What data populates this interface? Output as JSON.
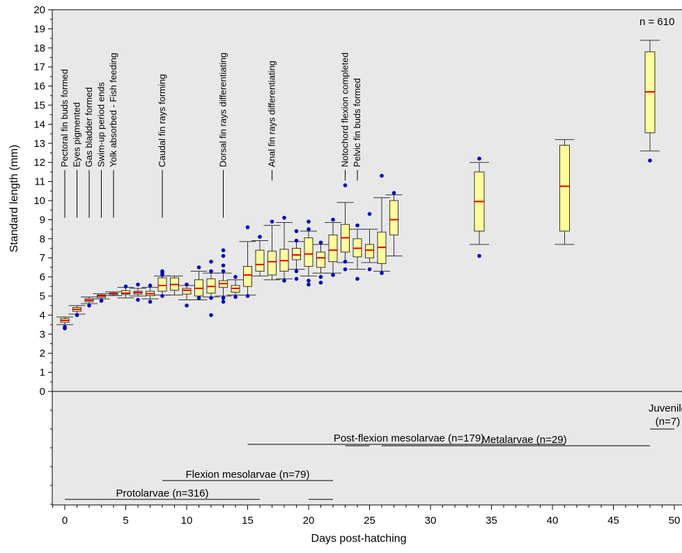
{
  "chart_data": {
    "type": "box",
    "xlabel": "Days post-hatching",
    "ylabel": "Standard length (mm)",
    "xlim": [
      -1,
      50.5
    ],
    "ylim": [
      0,
      20
    ],
    "xticks": [
      0,
      5,
      10,
      15,
      20,
      25,
      30,
      35,
      40,
      45,
      50
    ],
    "yticks": [
      0,
      1,
      2,
      3,
      4,
      5,
      6,
      7,
      8,
      9,
      10,
      11,
      12,
      13,
      14,
      15,
      16,
      17,
      18,
      19,
      20
    ],
    "n_label": "n = 610",
    "grid": false,
    "colors": {
      "background": "#e8e8e8",
      "box_fill": "#ffff99",
      "box_edge": "#333333",
      "median": "#e60000",
      "outlier": "#0000cc"
    },
    "boxes": [
      {
        "day": 0,
        "whisker_low": 3.5,
        "q1": 3.62,
        "median": 3.72,
        "q3": 3.82,
        "whisker_high": 3.9,
        "outliers": [
          3.3,
          3.38
        ]
      },
      {
        "day": 1,
        "whisker_low": 4.05,
        "q1": 4.2,
        "median": 4.3,
        "q3": 4.4,
        "whisker_high": 4.5,
        "outliers": [
          4.0
        ]
      },
      {
        "day": 2,
        "whisker_low": 4.6,
        "q1": 4.7,
        "median": 4.78,
        "q3": 4.86,
        "whisker_high": 4.95,
        "outliers": [
          4.5
        ]
      },
      {
        "day": 3,
        "whisker_low": 4.85,
        "q1": 4.92,
        "median": 5.0,
        "q3": 5.06,
        "whisker_high": 5.12,
        "outliers": [
          4.75
        ]
      },
      {
        "day": 4,
        "whisker_low": 5.02,
        "q1": 5.08,
        "median": 5.12,
        "q3": 5.16,
        "whisker_high": 5.22,
        "outliers": []
      },
      {
        "day": 5,
        "whisker_low": 4.9,
        "q1": 5.08,
        "median": 5.15,
        "q3": 5.28,
        "whisker_high": 5.45,
        "outliers": [
          5.5
        ]
      },
      {
        "day": 6,
        "whisker_low": 5.0,
        "q1": 5.1,
        "median": 5.18,
        "q3": 5.25,
        "whisker_high": 5.4,
        "outliers": [
          4.8,
          5.6
        ]
      },
      {
        "day": 7,
        "whisker_low": 4.85,
        "q1": 5.02,
        "median": 5.12,
        "q3": 5.25,
        "whisker_high": 5.45,
        "outliers": [
          4.7,
          5.55
        ]
      },
      {
        "day": 8,
        "whisker_low": 5.05,
        "q1": 5.25,
        "median": 5.55,
        "q3": 5.95,
        "whisker_high": 6.05,
        "outliers": [
          5.0,
          6.1,
          6.2,
          6.3
        ]
      },
      {
        "day": 9,
        "whisker_low": 5.05,
        "q1": 5.3,
        "median": 5.6,
        "q3": 5.95,
        "whisker_high": 6.05,
        "outliers": []
      },
      {
        "day": 10,
        "whisker_low": 4.8,
        "q1": 5.1,
        "median": 5.3,
        "q3": 5.4,
        "whisker_high": 5.55,
        "outliers": [
          4.5,
          5.6
        ]
      },
      {
        "day": 11,
        "whisker_low": 4.8,
        "q1": 5.0,
        "median": 5.4,
        "q3": 5.85,
        "whisker_high": 6.3,
        "outliers": [
          4.9,
          6.5
        ]
      },
      {
        "day": 12,
        "whisker_low": 4.95,
        "q1": 5.15,
        "median": 5.5,
        "q3": 5.9,
        "whisker_high": 6.2,
        "outliers": [
          4.0,
          4.9,
          6.3,
          6.8
        ]
      },
      {
        "day": 13,
        "whisker_low": 5.0,
        "q1": 5.45,
        "median": 5.65,
        "q3": 5.8,
        "whisker_high": 6.2,
        "outliers": [
          4.7,
          4.9,
          6.3,
          6.6,
          7.1,
          7.4
        ]
      },
      {
        "day": 14,
        "whisker_low": 5.05,
        "q1": 5.2,
        "median": 5.4,
        "q3": 5.55,
        "whisker_high": 5.85,
        "outliers": [
          4.95,
          6.0
        ]
      },
      {
        "day": 15,
        "whisker_low": 5.05,
        "q1": 5.5,
        "median": 6.1,
        "q3": 6.55,
        "whisker_high": 7.85,
        "outliers": [
          5.0,
          8.6
        ]
      },
      {
        "day": 16,
        "whisker_low": 6.05,
        "q1": 6.3,
        "median": 6.65,
        "q3": 7.4,
        "whisker_high": 7.9,
        "outliers": [
          8.1
        ]
      },
      {
        "day": 17,
        "whisker_low": 5.85,
        "q1": 6.1,
        "median": 6.8,
        "q3": 7.35,
        "whisker_high": 8.7,
        "outliers": [
          8.9
        ]
      },
      {
        "day": 18,
        "whisker_low": 5.9,
        "q1": 6.3,
        "median": 6.85,
        "q3": 7.45,
        "whisker_high": 8.85,
        "outliers": [
          5.8,
          9.1
        ]
      },
      {
        "day": 19,
        "whisker_low": 6.4,
        "q1": 6.9,
        "median": 7.15,
        "q3": 7.5,
        "whisker_high": 7.85,
        "outliers": [
          5.9,
          6.3,
          7.9,
          8.4
        ]
      },
      {
        "day": 20,
        "whisker_low": 6.05,
        "q1": 6.55,
        "median": 7.2,
        "q3": 8.05,
        "whisker_high": 8.4,
        "outliers": [
          5.6,
          5.8,
          8.5,
          8.9
        ]
      },
      {
        "day": 21,
        "whisker_low": 6.2,
        "q1": 6.5,
        "median": 7.0,
        "q3": 7.3,
        "whisker_high": 7.7,
        "outliers": [
          5.7,
          6.0,
          7.8
        ]
      },
      {
        "day": 22,
        "whisker_low": 6.2,
        "q1": 6.8,
        "median": 7.4,
        "q3": 8.2,
        "whisker_high": 8.85,
        "outliers": [
          6.1,
          9.0
        ]
      },
      {
        "day": 23,
        "whisker_low": 6.75,
        "q1": 7.3,
        "median": 8.05,
        "q3": 8.75,
        "whisker_high": 9.9,
        "outliers": [
          6.4,
          6.8,
          10.8
        ]
      },
      {
        "day": 24,
        "whisker_low": 6.4,
        "q1": 7.05,
        "median": 7.5,
        "q3": 8.0,
        "whisker_high": 8.5,
        "outliers": [
          5.9,
          8.7
        ]
      },
      {
        "day": 25,
        "whisker_low": 6.75,
        "q1": 7.0,
        "median": 7.4,
        "q3": 7.7,
        "whisker_high": 8.5,
        "outliers": [
          6.4,
          9.3
        ]
      },
      {
        "day": 26,
        "whisker_low": 6.3,
        "q1": 6.7,
        "median": 7.55,
        "q3": 8.35,
        "whisker_high": 10.15,
        "outliers": [
          6.2,
          11.3
        ]
      },
      {
        "day": 27,
        "whisker_low": 7.1,
        "q1": 8.2,
        "median": 9.0,
        "q3": 10.0,
        "whisker_high": 10.3,
        "outliers": [
          10.4
        ]
      },
      {
        "day": 34,
        "whisker_low": 7.7,
        "q1": 8.4,
        "median": 9.95,
        "q3": 11.5,
        "whisker_high": 12.0,
        "outliers": [
          7.1,
          12.2
        ]
      },
      {
        "day": 41,
        "whisker_low": 7.7,
        "q1": 8.4,
        "median": 10.75,
        "q3": 12.9,
        "whisker_high": 13.2,
        "outliers": []
      },
      {
        "day": 48,
        "whisker_low": 12.6,
        "q1": 13.55,
        "median": 15.7,
        "q3": 17.8,
        "whisker_high": 18.4,
        "outliers": [
          12.1
        ]
      }
    ],
    "events": [
      {
        "label": "Pectoral fin buds formed",
        "day": 0,
        "line_low": 9.1,
        "line_high": 11.6
      },
      {
        "label": "Eyes pigmented",
        "day": 1,
        "line_low": 9.1,
        "line_high": 11.6
      },
      {
        "label": "Gas bladder formed",
        "day": 2,
        "line_low": 9.1,
        "line_high": 11.6
      },
      {
        "label": "Swim-up period ends",
        "day": 3,
        "line_low": 9.1,
        "line_high": 11.6
      },
      {
        "label": "Yolk absorbed - Fish feeding",
        "day": 4,
        "line_low": 9.1,
        "line_high": 11.6
      },
      {
        "label": "Caudal fin rays forming",
        "day": 8,
        "line_low": 9.1,
        "line_high": 11.6
      },
      {
        "label": "Dorsal fin rays differentiating",
        "day": 13,
        "line_low": 9.1,
        "line_high": 11.6
      },
      {
        "label": "Anal fin rays differentiating",
        "day": 17,
        "line_low": 11.05,
        "line_high": 11.6
      },
      {
        "label": "Notochord flexion completed",
        "day": 23,
        "line_low": 11.05,
        "line_high": 11.6
      },
      {
        "label": "Pelvic fin buds formed",
        "day": 24,
        "line_low": 11.05,
        "line_high": 11.6
      }
    ],
    "stages": [
      {
        "label": "Protolarvae (n=316)",
        "segments": [
          [
            0,
            16
          ],
          [
            20,
            22
          ]
        ],
        "level": 1
      },
      {
        "label": "Flexion mesolarvae (n=79)",
        "segments": [
          [
            8,
            22
          ]
        ],
        "level": 2
      },
      {
        "label": "Post-flexion mesolarvae (n=179)",
        "segments": [
          [
            15,
            41
          ]
        ],
        "level": 3
      },
      {
        "label": "Metalarvae (n=29)",
        "segments": [
          [
            23,
            25
          ],
          [
            26,
            48
          ]
        ],
        "level": 4
      },
      {
        "label": "Juvenile",
        "sublabel": "(n=7)",
        "segments": [
          [
            48,
            50
          ]
        ],
        "level": 5
      }
    ]
  }
}
